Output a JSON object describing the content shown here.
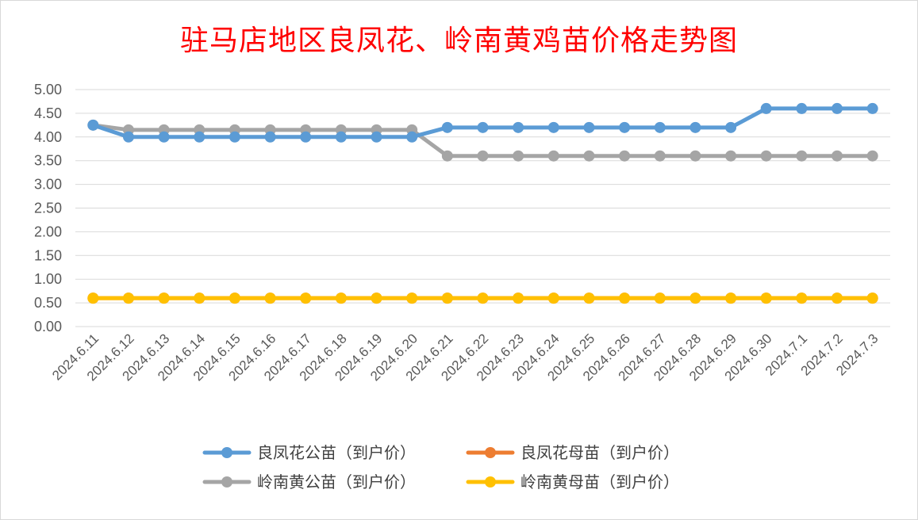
{
  "chart_data": {
    "type": "line",
    "title": "驻马店地区良凤花、岭南黄鸡苗价格走势图",
    "xlabel": "",
    "ylabel": "",
    "ylim": [
      0,
      5
    ],
    "yticks": [
      "0.00",
      "0.50",
      "1.00",
      "1.50",
      "2.00",
      "2.50",
      "3.00",
      "3.50",
      "4.00",
      "4.50",
      "5.00"
    ],
    "grid": true,
    "legend_position": "bottom",
    "categories": [
      "2024.6.11",
      "2024.6.12",
      "2024.6.13",
      "2024.6.14",
      "2024.6.15",
      "2024.6.16",
      "2024.6.17",
      "2024.6.18",
      "2024.6.19",
      "2024.6.20",
      "2024.6.21",
      "2024.6.22",
      "2024.6.23",
      "2024.6.24",
      "2024.6.25",
      "2024.6.26",
      "2024.6.27",
      "2024.6.28",
      "2024.6.29",
      "2024.6.30",
      "2024.7.1",
      "2024.7.2",
      "2024.7.3"
    ],
    "series": [
      {
        "name": "良凤花公苗（到户价）",
        "color": "#5b9bd5",
        "values": [
          4.25,
          4.0,
          4.0,
          4.0,
          4.0,
          4.0,
          4.0,
          4.0,
          4.0,
          4.0,
          4.2,
          4.2,
          4.2,
          4.2,
          4.2,
          4.2,
          4.2,
          4.2,
          4.2,
          4.6,
          4.6,
          4.6,
          4.6
        ]
      },
      {
        "name": "良凤花母苗（到户价）",
        "color": "#ed7d31",
        "values": [
          0.6,
          0.6,
          0.6,
          0.6,
          0.6,
          0.6,
          0.6,
          0.6,
          0.6,
          0.6,
          0.6,
          0.6,
          0.6,
          0.6,
          0.6,
          0.6,
          0.6,
          0.6,
          0.6,
          0.6,
          0.6,
          0.6,
          0.6
        ]
      },
      {
        "name": "岭南黄公苗（到户价）",
        "color": "#a5a5a5",
        "values": [
          4.25,
          4.15,
          4.15,
          4.15,
          4.15,
          4.15,
          4.15,
          4.15,
          4.15,
          4.15,
          3.6,
          3.6,
          3.6,
          3.6,
          3.6,
          3.6,
          3.6,
          3.6,
          3.6,
          3.6,
          3.6,
          3.6,
          3.6
        ]
      },
      {
        "name": "岭南黄母苗（到户价）",
        "color": "#ffc000",
        "values": [
          0.6,
          0.6,
          0.6,
          0.6,
          0.6,
          0.6,
          0.6,
          0.6,
          0.6,
          0.6,
          0.6,
          0.6,
          0.6,
          0.6,
          0.6,
          0.6,
          0.6,
          0.6,
          0.6,
          0.6,
          0.6,
          0.6,
          0.6
        ]
      }
    ]
  }
}
